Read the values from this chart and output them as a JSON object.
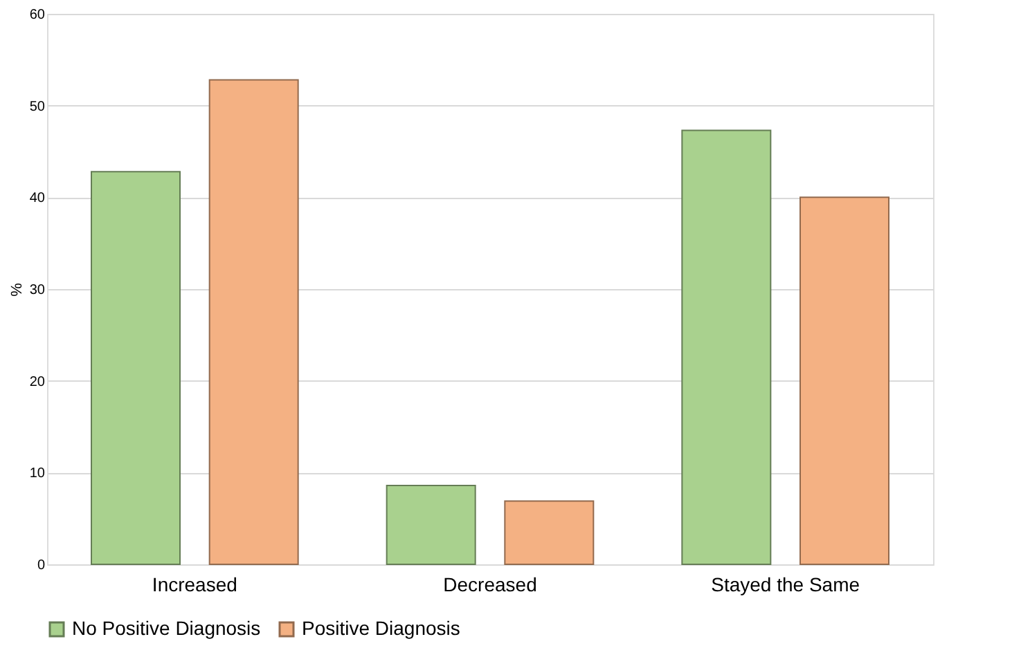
{
  "chart_data": {
    "type": "bar",
    "ylabel": "%",
    "categories": [
      "Increased",
      "Decreased",
      "Stayed the Same"
    ],
    "series": [
      {
        "name": "No Positive Diagnosis",
        "color": "#a9d18e",
        "values": [
          42.8,
          8.6,
          47.3
        ]
      },
      {
        "name": "Positive Diagnosis",
        "color": "#f4b183",
        "values": [
          52.8,
          6.9,
          40.0
        ]
      }
    ],
    "ylim": [
      0,
      60
    ],
    "yticks": [
      0,
      10,
      20,
      30,
      40,
      50,
      60
    ],
    "grid": "y",
    "legend": "bottom"
  }
}
